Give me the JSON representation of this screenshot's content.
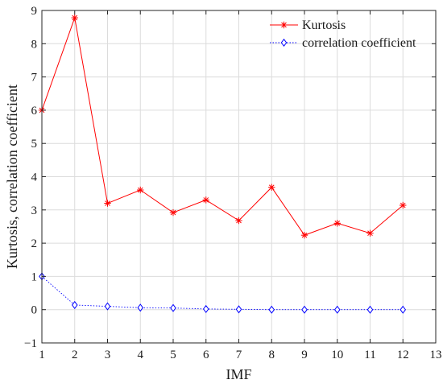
{
  "chart_data": {
    "type": "line",
    "title": "",
    "xlabel": "IMF",
    "ylabel": "Kurtosis, correlation coefficient",
    "xlim": [
      1,
      13
    ],
    "ylim": [
      -1,
      9
    ],
    "xticks": [
      1,
      2,
      3,
      4,
      5,
      6,
      7,
      8,
      9,
      10,
      11,
      12,
      13
    ],
    "yticks": [
      -1,
      0,
      1,
      2,
      3,
      4,
      5,
      6,
      7,
      8,
      9
    ],
    "grid": true,
    "legend_position": "top-right",
    "x": [
      1,
      2,
      3,
      4,
      5,
      6,
      7,
      8,
      9,
      10,
      11,
      12
    ],
    "series": [
      {
        "name": "Kurtosis",
        "color": "#ff0000",
        "marker": "asterisk",
        "line_style": "solid",
        "values": [
          6.0,
          8.78,
          3.2,
          3.6,
          2.92,
          3.3,
          2.68,
          3.68,
          2.24,
          2.6,
          2.3,
          3.14
        ]
      },
      {
        "name": "correlation coefficient",
        "color": "#0000ff",
        "marker": "diamond",
        "line_style": "dotted",
        "values": [
          1.0,
          0.14,
          0.1,
          0.06,
          0.05,
          0.02,
          0.01,
          0.0,
          0.0,
          0.0,
          0.0,
          0.0
        ]
      }
    ]
  }
}
